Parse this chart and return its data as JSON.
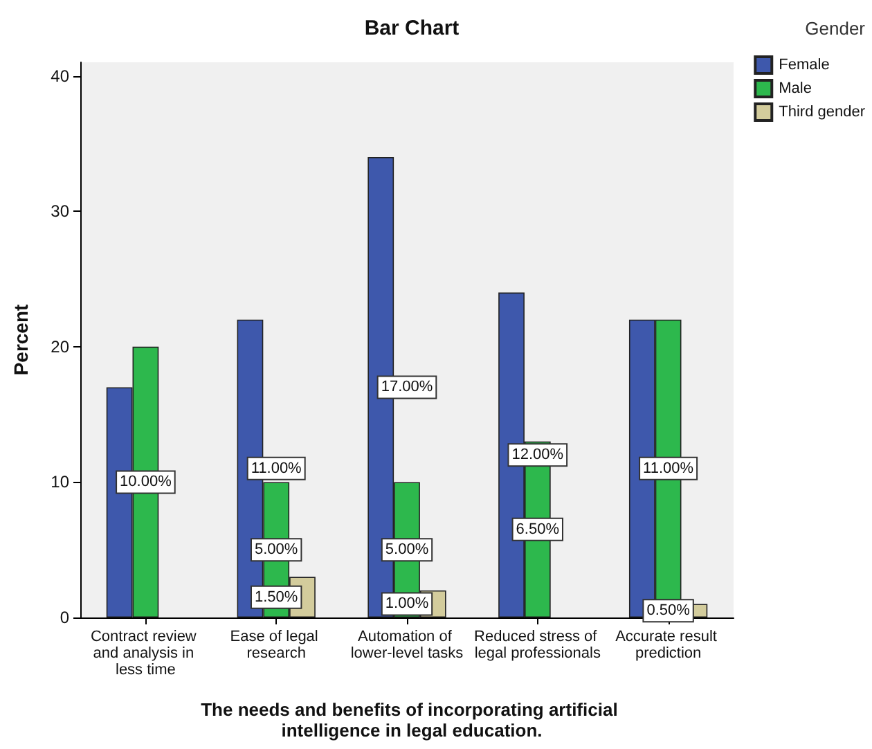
{
  "chart_data": {
    "type": "bar",
    "title": "Bar Chart",
    "xlabel": "The needs and benefits of incorporating artificial intelligence in legal education.",
    "ylabel": "Percent",
    "legend_title": "Gender",
    "legend": "top right",
    "categories": [
      "Contract review and analysis in less time",
      "Ease of legal research",
      "Automation of lower-level tasks",
      "Reduced stress of legal professionals",
      "Accurate result prediction"
    ],
    "series": [
      {
        "name": "Female",
        "color": "#3e58ac",
        "values": [
          17,
          22,
          34,
          24,
          22
        ]
      },
      {
        "name": "Male",
        "color": "#2db84d",
        "values": [
          20,
          10,
          10,
          13,
          22
        ]
      },
      {
        "name": "Third gender",
        "color": "#d3cc9c",
        "values": [
          null,
          3,
          2,
          null,
          1
        ]
      }
    ],
    "annotations": [
      {
        "text": "10.00%",
        "x": "Contract review and analysis in less time",
        "y": 10
      },
      {
        "text": "11.00%",
        "x": "Ease of legal research",
        "y": 11
      },
      {
        "text": "5.00%",
        "x": "Ease of legal research",
        "y": 5
      },
      {
        "text": "1.50%",
        "x": "Ease of legal research",
        "y": 1.5
      },
      {
        "text": "17.00%",
        "x": "Automation of lower-level tasks",
        "y": 17
      },
      {
        "text": "5.00%",
        "x": "Automation of lower-level tasks",
        "y": 5
      },
      {
        "text": "1.00%",
        "x": "Automation of lower-level tasks",
        "y": 1
      },
      {
        "text": "12.00%",
        "x": "Reduced stress of legal professionals",
        "y": 12
      },
      {
        "text": "6.50%",
        "x": "Reduced stress of legal professionals",
        "y": 6.5
      },
      {
        "text": "11.00%",
        "x": "Accurate result prediction",
        "y": 11
      },
      {
        "text": "0.50%",
        "x": "Accurate result prediction",
        "y": 0.5
      }
    ],
    "ylim": [
      0,
      41
    ],
    "yticks": [
      0,
      10,
      20,
      30,
      40
    ],
    "grid": false
  }
}
